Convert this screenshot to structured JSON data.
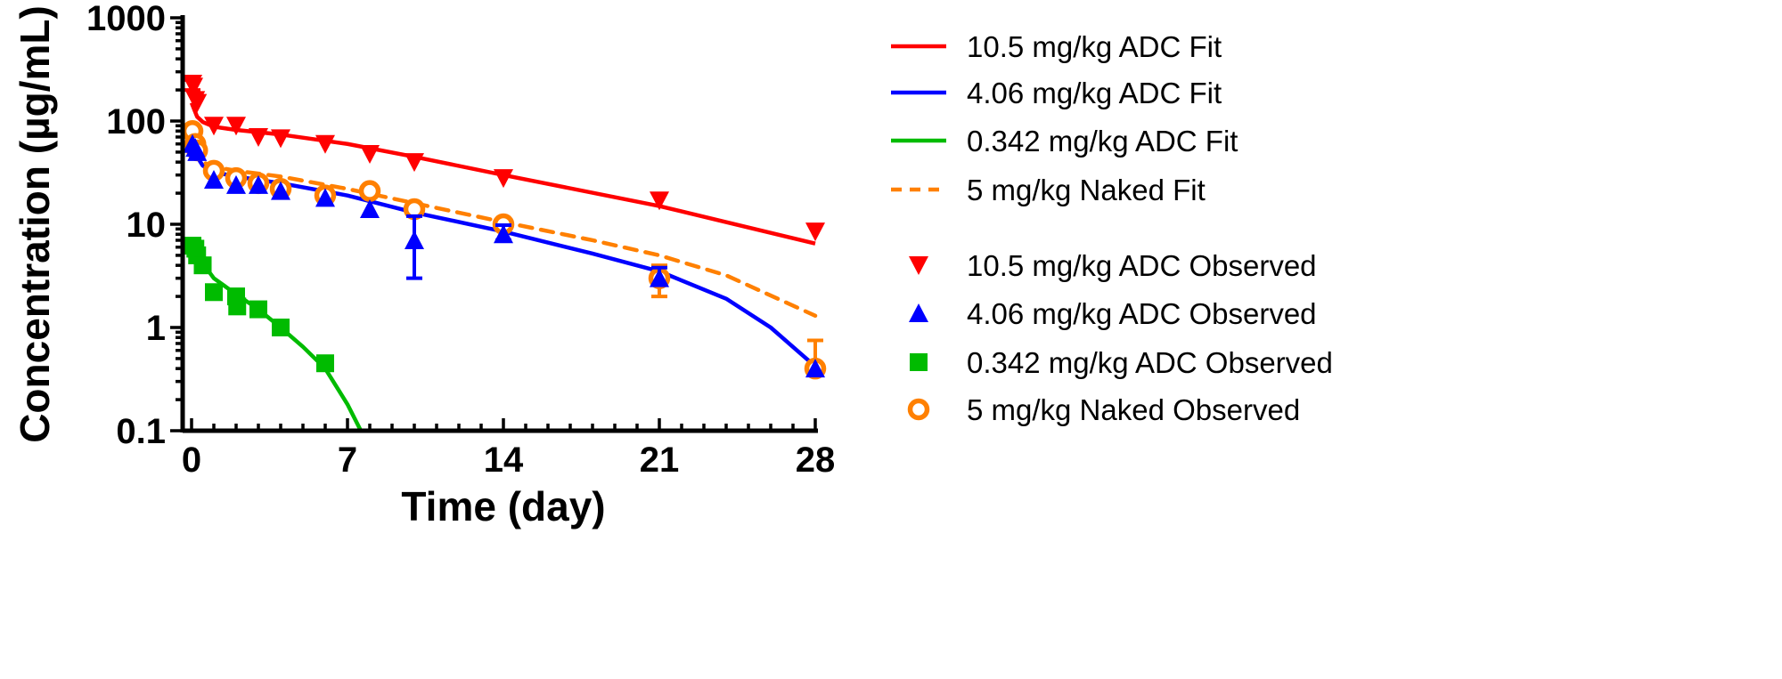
{
  "chart_data": {
    "type": "line",
    "xlabel": "Time (day)",
    "ylabel": "Concentration (µg/mL)",
    "xlim": [
      0,
      28
    ],
    "ylim": [
      0.1,
      1000
    ],
    "yscale": "log",
    "x_ticks": [
      "0",
      "7",
      "14",
      "21",
      "28"
    ],
    "y_ticks": [
      "0.1",
      "1",
      "10",
      "100",
      "1000"
    ],
    "grid": false,
    "legend_placement": "right",
    "fits": [
      {
        "name": "10.5 mg/kg ADC Fit",
        "color": "#ff0000",
        "dashed": false,
        "x": [
          0,
          0.25,
          0.5,
          1,
          2,
          4,
          7,
          10,
          14,
          21,
          28
        ],
        "y": [
          150,
          110,
          98,
          88,
          82,
          74,
          60,
          45,
          30,
          15,
          6.5
        ]
      },
      {
        "name": "4.06 mg/kg ADC Fit",
        "color": "#0000ff",
        "dashed": false,
        "x": [
          0,
          0.25,
          0.5,
          1,
          2,
          4,
          7,
          10,
          14,
          18,
          21,
          24,
          26,
          28
        ],
        "y": [
          65,
          45,
          37,
          32,
          29,
          25,
          19,
          13,
          8.5,
          5.2,
          3.5,
          1.9,
          1.0,
          0.42
        ]
      },
      {
        "name": "0.342 mg/kg ADC Fit",
        "color": "#00bb00",
        "dashed": false,
        "x": [
          0,
          0.5,
          1,
          2,
          3,
          4,
          5,
          6,
          7,
          7.6
        ],
        "y": [
          6.5,
          4.2,
          3.0,
          2.1,
          1.5,
          1.0,
          0.65,
          0.4,
          0.18,
          0.1
        ]
      },
      {
        "name": "5 mg/kg Naked Fit",
        "color": "#ff8000",
        "dashed": true,
        "x": [
          0,
          0.25,
          0.5,
          1,
          2,
          4,
          7,
          10,
          14,
          18,
          21,
          24,
          28
        ],
        "y": [
          55,
          45,
          40,
          36,
          33,
          29,
          22,
          16,
          10.5,
          7,
          5,
          3.2,
          1.3
        ]
      }
    ],
    "observed": [
      {
        "name": "10.5 mg/kg ADC Observed",
        "color": "#ff0000",
        "marker": "triangle-down",
        "x": [
          0.04,
          0.08,
          0.17,
          0.25,
          1,
          2,
          3,
          4,
          6,
          8,
          10,
          14,
          21,
          28
        ],
        "y": [
          230,
          215,
          160,
          150,
          90,
          90,
          70,
          68,
          60,
          48,
          40,
          28,
          17,
          8.5
        ],
        "err_low": [
          200,
          null,
          null,
          null,
          null,
          null,
          null,
          null,
          null,
          null,
          null,
          null,
          null,
          null
        ],
        "err_high": [
          250,
          null,
          null,
          null,
          null,
          null,
          null,
          null,
          null,
          null,
          null,
          null,
          null,
          null
        ]
      },
      {
        "name": "4.06 mg/kg ADC Observed",
        "color": "#0000ff",
        "marker": "triangle-up",
        "x": [
          0.04,
          0.17,
          0.25,
          1,
          2,
          3,
          4,
          6,
          8,
          10,
          14,
          21,
          28
        ],
        "y": [
          60,
          55,
          50,
          27,
          24,
          24,
          21,
          18,
          14,
          7,
          8,
          3,
          0.4
        ],
        "err_low": [
          null,
          null,
          null,
          null,
          null,
          null,
          null,
          null,
          null,
          3,
          7,
          2.6,
          null
        ],
        "err_high": [
          null,
          null,
          null,
          null,
          null,
          null,
          null,
          null,
          null,
          12,
          9.8,
          3.8,
          null
        ]
      },
      {
        "name": "0.342 mg/kg ADC Observed",
        "color": "#00bb00",
        "marker": "square",
        "x": [
          0.04,
          0.17,
          0.25,
          0.5,
          1,
          2,
          2.05,
          3,
          4,
          6
        ],
        "y": [
          6.2,
          5.8,
          5,
          4,
          2.2,
          2,
          1.6,
          1.5,
          1,
          0.45
        ],
        "err_low": [
          null,
          null,
          null,
          null,
          null,
          null,
          null,
          null,
          null,
          null
        ],
        "err_high": [
          null,
          null,
          null,
          null,
          null,
          null,
          null,
          null,
          null,
          null
        ]
      },
      {
        "name": "5 mg/kg Naked Observed",
        "color": "#ff8000",
        "marker": "circle-open",
        "x": [
          0.04,
          0.17,
          0.25,
          1,
          2,
          3,
          4,
          6,
          8,
          10,
          14,
          21,
          28
        ],
        "y": [
          80,
          60,
          52,
          33,
          28,
          25,
          22,
          19,
          21,
          14,
          10,
          3,
          0.4
        ],
        "err_low": [
          null,
          null,
          null,
          null,
          null,
          null,
          null,
          null,
          null,
          null,
          null,
          2,
          null
        ],
        "err_high": [
          null,
          null,
          null,
          null,
          null,
          null,
          null,
          null,
          null,
          null,
          null,
          4,
          0.75
        ]
      }
    ]
  }
}
